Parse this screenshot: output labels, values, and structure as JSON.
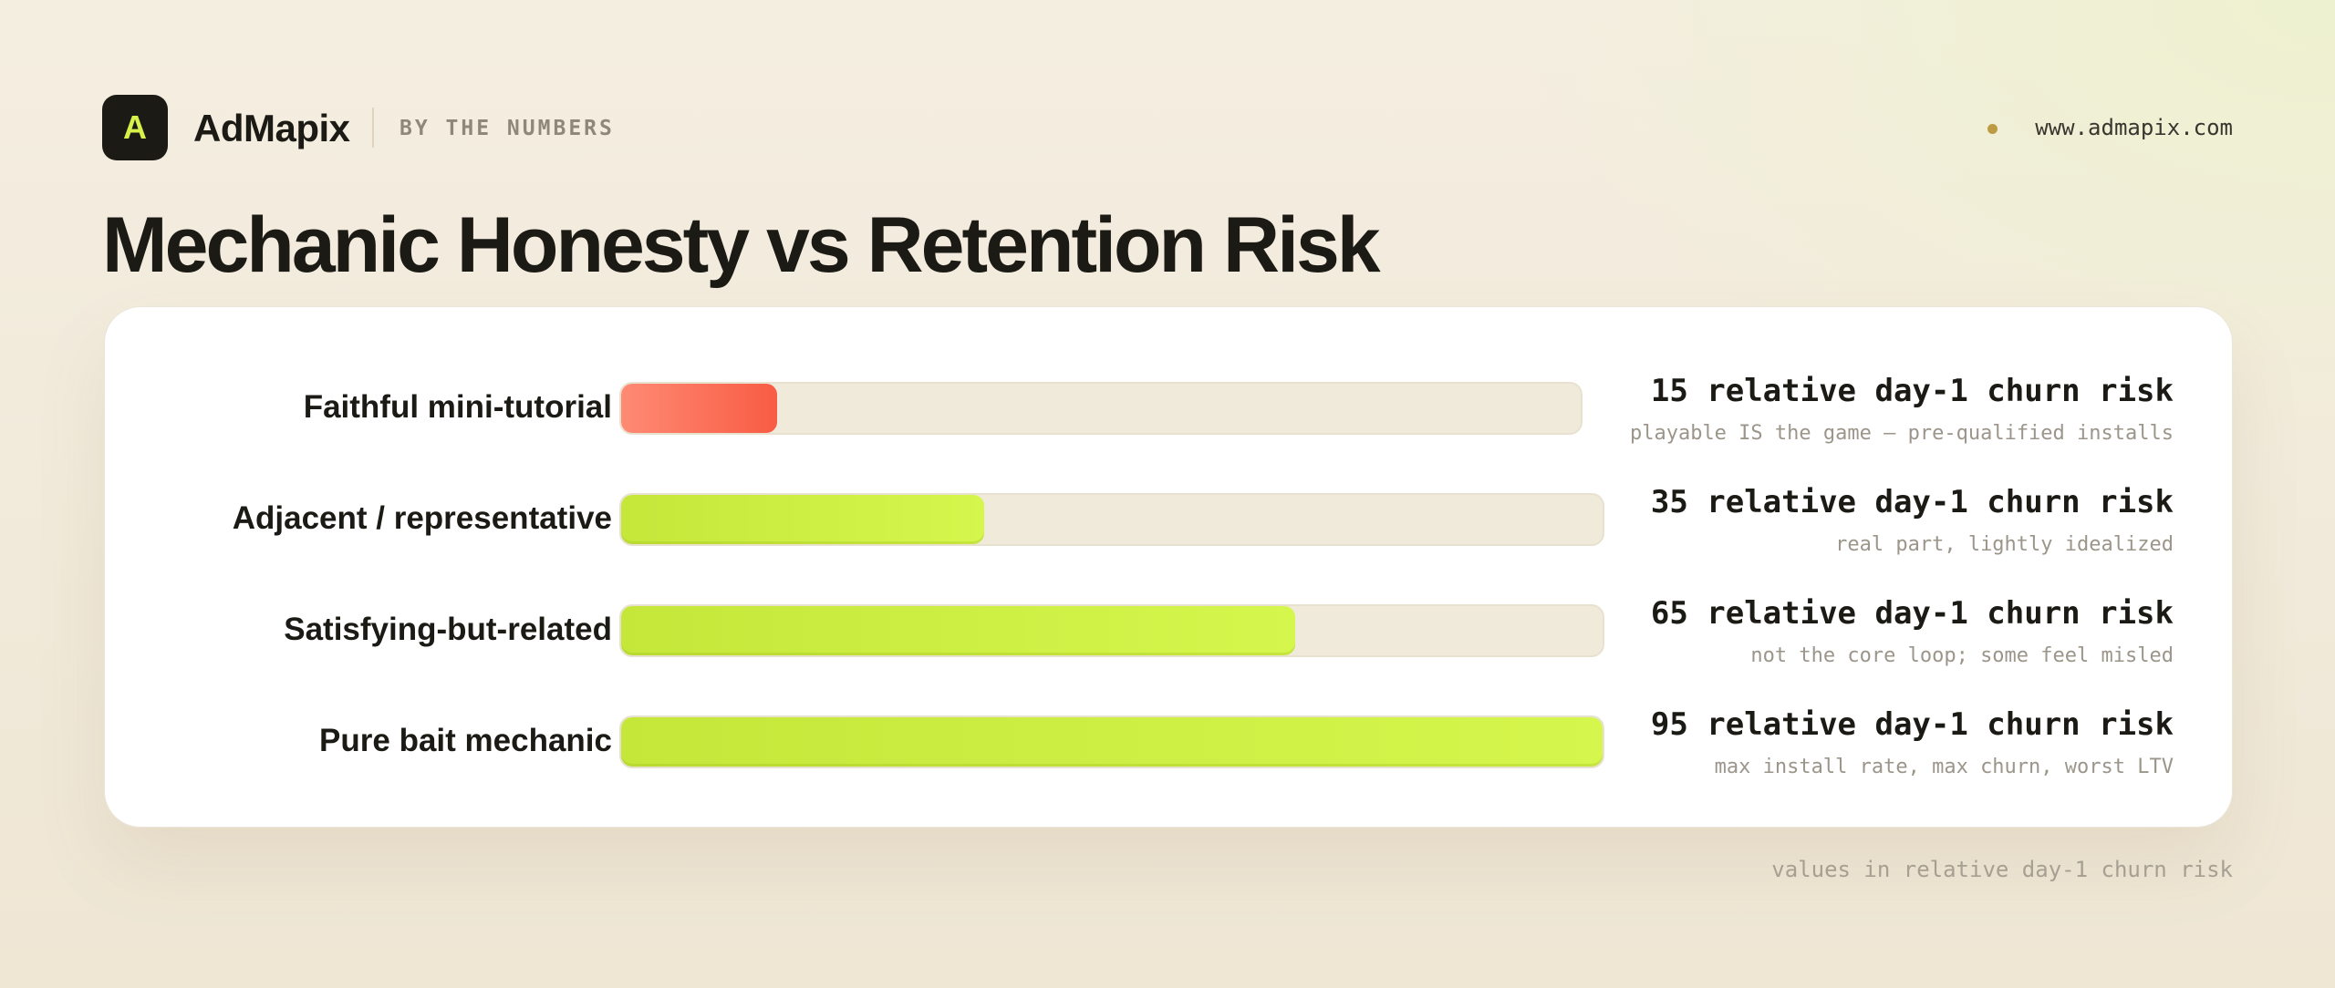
{
  "header": {
    "logo_letter": "A",
    "brand": "AdMapix",
    "tagline": "BY THE NUMBERS",
    "website": "www.admapix.com"
  },
  "title": "Mechanic Honesty vs Retention Risk",
  "footer_note": "values in relative day-1 churn risk",
  "colors": {
    "accent_green": "#d5f64c",
    "accent_red": "#f85c44",
    "track": "#f0eadb"
  },
  "chart_data": {
    "type": "bar",
    "orientation": "horizontal",
    "title": "Mechanic Honesty vs Retention Risk",
    "xlabel": "relative day-1 churn risk",
    "ylabel": "",
    "xlim": [
      0,
      95
    ],
    "categories": [
      "Faithful mini-tutorial",
      "Adjacent / representative",
      "Satisfying-but-related",
      "Pure bait mechanic"
    ],
    "values": [
      15,
      35,
      65,
      95
    ],
    "value_labels": [
      "15 relative day-1 churn risk",
      "35 relative day-1 churn risk",
      "65 relative day-1 churn risk",
      "95 relative day-1 churn risk"
    ],
    "annotations": [
      "playable IS the game — pre-qualified installs",
      "real part, lightly idealized",
      "not the core loop; some feel misled",
      "max install rate, max churn, worst LTV"
    ],
    "bar_colors": [
      "#f85c44",
      "#d5f64c",
      "#d5f64c",
      "#d5f64c"
    ],
    "grid": false,
    "legend": "none"
  }
}
